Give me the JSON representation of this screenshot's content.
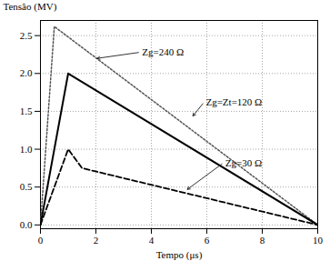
{
  "chart_data": {
    "type": "line",
    "xlabel": "Tempo (μs)",
    "ylabel": "Tensão (MV)",
    "xlim": [
      0,
      10
    ],
    "ylim": [
      -0.05,
      2.7
    ],
    "xticks": [
      0,
      2,
      4,
      6,
      8,
      10
    ],
    "yticks": [
      {
        "value": 0,
        "label": "0.0"
      },
      0.5,
      {
        "value": 1.0,
        "label": "1.0"
      },
      1.5,
      {
        "value": 2.0,
        "label": "2.0"
      },
      2.5
    ],
    "grid": true,
    "series": [
      {
        "x": [
          0,
          0.5,
          10
        ],
        "values": [
          0,
          2.62,
          0
        ],
        "color": "#555555",
        "line_style": "dotted"
      },
      {
        "x": [
          0,
          1.0,
          10
        ],
        "values": [
          0,
          2.0,
          0
        ],
        "color": "#000000",
        "line_style": "solid"
      },
      {
        "x": [
          0,
          1.0,
          1.5,
          10
        ],
        "values": [
          0,
          1.0,
          0.75,
          0
        ],
        "color": "#000000",
        "line_style": "dashed"
      }
    ],
    "annotations": [
      {
        "text": "Zg=240 Ω",
        "xy": [
          2.05,
          2.2
        ],
        "xytext": [
          3.6,
          2.28
        ]
      },
      {
        "text": "Zg=Zt=120 Ω",
        "xy": [
          5.5,
          1.44
        ],
        "xytext": [
          5.9,
          1.62
        ]
      },
      {
        "text": "Zg=30 Ω",
        "xy": [
          5.3,
          0.47
        ],
        "xytext": [
          6.6,
          0.82
        ]
      }
    ]
  }
}
